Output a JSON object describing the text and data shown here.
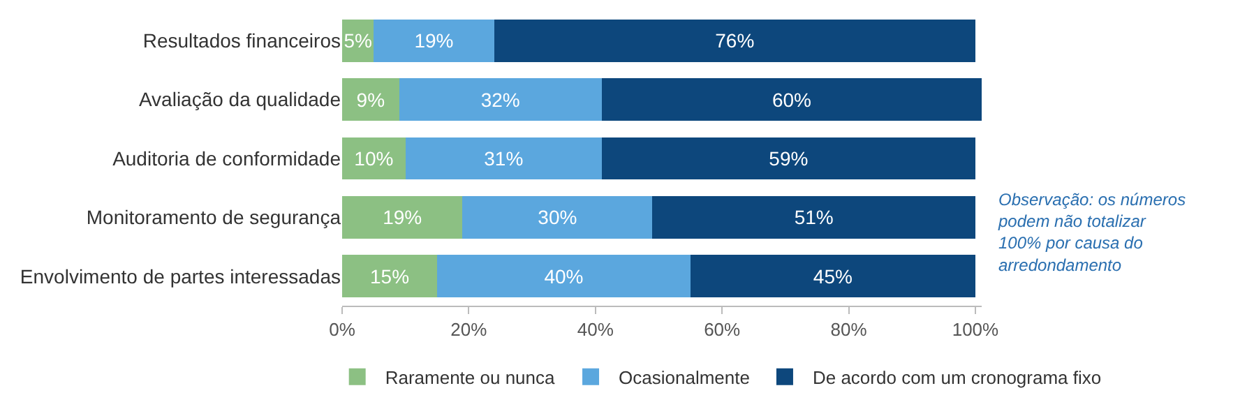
{
  "chart_data": {
    "type": "bar",
    "orientation": "horizontal",
    "stacked": true,
    "categories": [
      "Resultados financeiros",
      "Avaliação da qualidade",
      "Auditoria de conformidade",
      "Monitoramento de segurança",
      "Envolvimento de partes interessadas"
    ],
    "series": [
      {
        "name": "Raramente ou nunca",
        "color": "#8cc083",
        "values": [
          5,
          9,
          10,
          19,
          15
        ],
        "value_labels": [
          "5%",
          "9%",
          "10%",
          "19%",
          "15%"
        ]
      },
      {
        "name": "Ocasionalmente",
        "color": "#5ba7de",
        "values": [
          19,
          32,
          31,
          30,
          40
        ],
        "value_labels": [
          "19%",
          "32%",
          "31%",
          "30%",
          "40%"
        ]
      },
      {
        "name": "De acordo com um cronograma fixo",
        "color": "#0d477c",
        "values": [
          76,
          60,
          59,
          51,
          45
        ],
        "value_labels": [
          "76%",
          "60%",
          "59%",
          "51%",
          "45%"
        ]
      }
    ],
    "xlim": [
      0,
      101
    ],
    "xticks": [
      {
        "value": 0,
        "label": "0%"
      },
      {
        "value": 20,
        "label": "20%"
      },
      {
        "value": 40,
        "label": "40%"
      },
      {
        "value": 60,
        "label": "60%"
      },
      {
        "value": 80,
        "label": "80%"
      },
      {
        "value": 100,
        "label": "100%"
      }
    ],
    "legend": "bottom",
    "annotations": [
      "Observação: os números\npodem não totalizar\n100% por causa do\narredondamento"
    ]
  }
}
